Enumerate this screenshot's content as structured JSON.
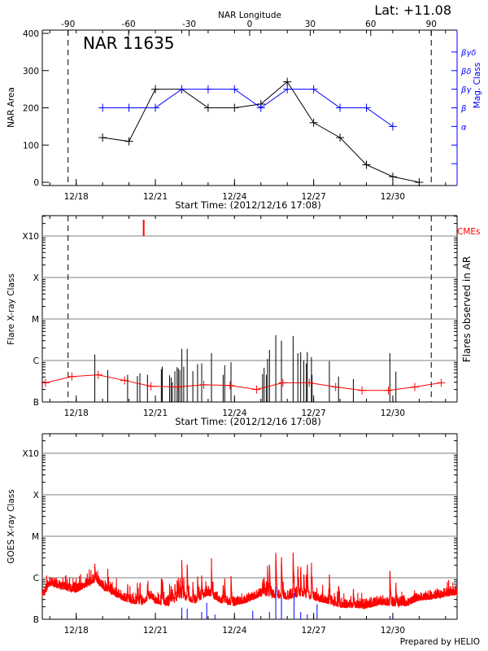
{
  "header": {
    "latitude_label": "Lat: +11.08",
    "longitude_axis_label": "NAR Longitude"
  },
  "colors": {
    "area": "#000000",
    "mag_class": "#0000ff",
    "flare_projection": "#ff0000",
    "cme": "#ff0000",
    "goes": "#ff0000",
    "goes_markers": "#0000ff",
    "grid": "#999999"
  },
  "footer": {
    "credit": "Prepared by HELIO"
  },
  "chart_data": [
    {
      "type": "line",
      "panel": "nar",
      "annotation": "NAR 11635",
      "xlabel": "Start Time: (2012/12/16 17:08)",
      "ylabel": "NAR Area",
      "y2label": "Mag. Class",
      "xlim": [
        "2012-12-16T17:08",
        "2013-01-01T10:30"
      ],
      "ylim": [
        -10,
        410
      ],
      "x_ticks": [
        "12/18",
        "12/21",
        "12/24",
        "12/27",
        "12/30"
      ],
      "y_ticks": [
        0,
        100,
        200,
        300,
        400
      ],
      "top_axis": {
        "label": "NAR Longitude",
        "ticks": [
          -90,
          -60,
          -30,
          0,
          30,
          60,
          90
        ],
        "limb_crossings": [
          {
            "lon": -90,
            "date": "2012-12-17T16:35"
          },
          {
            "lon": 90,
            "date": "2012-12-31T11:00"
          }
        ]
      },
      "mag_class_axis": [
        {
          "level": 50,
          "label": ""
        },
        {
          "level": 100,
          "label": ""
        },
        {
          "level": 150,
          "label": "α"
        },
        {
          "level": 200,
          "label": "β"
        },
        {
          "level": 250,
          "label": "βγ"
        },
        {
          "level": 300,
          "label": "βδ"
        },
        {
          "level": 350,
          "label": "βγδ"
        }
      ],
      "series": [
        {
          "key": "area",
          "dates": [
            "2012-12-19",
            "2012-12-20",
            "2012-12-21",
            "2012-12-22",
            "2012-12-23",
            "2012-12-24",
            "2012-12-25",
            "2012-12-26",
            "2012-12-27",
            "2012-12-28",
            "2012-12-29",
            "2012-12-30",
            "2012-12-31"
          ],
          "values": [
            120,
            110,
            250,
            250,
            200,
            200,
            210,
            270,
            160,
            120,
            47,
            15,
            0
          ]
        },
        {
          "key": "mag_class",
          "dates": [
            "2012-12-19",
            "2012-12-20",
            "2012-12-21",
            "2012-12-22",
            "2012-12-23",
            "2012-12-24",
            "2012-12-25",
            "2012-12-26",
            "2012-12-27",
            "2012-12-28",
            "2012-12-29",
            "2012-12-30"
          ],
          "values": [
            "β",
            "β",
            "β",
            "βγ",
            "βγ",
            "βγ",
            "β",
            "βγ",
            "βγ",
            "β",
            "β",
            "α"
          ]
        }
      ]
    },
    {
      "type": "bar",
      "panel": "flares",
      "xlabel": "Start Time: (2012/12/16 17:08)",
      "ylabel": "Flare X-ray Class",
      "y2label": "Flares observed in AR",
      "cme_label": "CMEs",
      "y_scale": "log",
      "y_ticks": [
        "B",
        "C",
        "M",
        "X",
        "X10"
      ],
      "grid": true,
      "x_ticks": [
        "12/18",
        "12/21",
        "12/24",
        "12/27",
        "12/30"
      ],
      "cmes": [
        "2012-12-20T13:22"
      ],
      "flares": [
        [
          "2012-12-18T16:55",
          "C1.4"
        ],
        [
          "2012-12-19T04:41",
          "B5.9"
        ],
        [
          "2012-12-19T22:45",
          "B4.5"
        ],
        [
          "2012-12-20T07:38",
          "B4.2"
        ],
        [
          "2012-12-20T09:56",
          "B4.9"
        ],
        [
          "2012-12-20T16:49",
          "B4.5"
        ],
        [
          "2012-12-21T05:26",
          "B6.2"
        ],
        [
          "2012-12-21T06:17",
          "B7.1"
        ],
        [
          "2012-12-21T12:54",
          "B4.4"
        ],
        [
          "2012-12-21T14:20",
          "B3.9"
        ],
        [
          "2012-12-21T15:28",
          "B3.0"
        ],
        [
          "2012-12-21T17:46",
          "B5.5"
        ],
        [
          "2012-12-21T19:46",
          "B6.9"
        ],
        [
          "2012-12-21T20:55",
          "B6.4"
        ],
        [
          "2012-12-21T22:21",
          "B5.9"
        ],
        [
          "2012-12-22T00:05",
          "C1.9"
        ],
        [
          "2012-12-22T01:48",
          "B7.1"
        ],
        [
          "2012-12-22T04:57",
          "C1.9"
        ],
        [
          "2012-12-22T10:07",
          "B5.5"
        ],
        [
          "2012-12-22T14:25",
          "B8.2"
        ],
        [
          "2012-12-22T18:09",
          "B8.5"
        ],
        [
          "2012-12-23T03:02",
          "C1.5"
        ],
        [
          "2012-12-23T13:39",
          "B4.5"
        ],
        [
          "2012-12-23T15:05",
          "B7.7"
        ],
        [
          "2012-12-23T20:49",
          "B9.1"
        ],
        [
          "2012-12-25T01:30",
          "B4.7"
        ],
        [
          "2012-12-25T02:56",
          "B6.7"
        ],
        [
          "2012-12-25T04:57",
          "B4.5"
        ],
        [
          "2012-12-25T06:05",
          "C1.1"
        ],
        [
          "2012-12-25T07:49",
          "C1.8"
        ],
        [
          "2012-12-25T13:33",
          "C4.1"
        ],
        [
          "2012-12-25T18:42",
          "C3.0"
        ],
        [
          "2012-12-26T05:19",
          "C3.9"
        ],
        [
          "2012-12-26T09:37",
          "C1.5"
        ],
        [
          "2012-12-26T12:12",
          "C1.6"
        ],
        [
          "2012-12-26T15:04",
          "C1.0"
        ],
        [
          "2012-12-26T17:22",
          "B8.5"
        ],
        [
          "2012-12-26T18:13",
          "C1.6"
        ],
        [
          "2012-12-26T22:00",
          "C1.2"
        ],
        [
          "2012-12-26T22:31",
          "B4.5"
        ],
        [
          "2012-12-27T14:18",
          "B9.7"
        ],
        [
          "2012-12-27T22:37",
          "B4.1"
        ],
        [
          "2012-12-28T12:06",
          "B3.6"
        ],
        [
          "2012-12-29T21:22",
          "C1.5"
        ],
        [
          "2012-12-30T02:49",
          "B5.4"
        ]
      ],
      "projection": {
        "dates": [
          "2012-12-16T20:00",
          "2012-12-17T20:00",
          "2012-12-18T20:00",
          "2012-12-19T20:00",
          "2012-12-20T20:00",
          "2012-12-21T20:00",
          "2012-12-22T20:00",
          "2012-12-23T20:00",
          "2012-12-24T20:00",
          "2012-12-25T20:00",
          "2012-12-26T20:00",
          "2012-12-27T20:00",
          "2012-12-28T20:00",
          "2012-12-29T20:00",
          "2012-12-30T20:00",
          "2012-12-31T20:00"
        ],
        "values": [
          "B2.9",
          "B4.1",
          "B4.5",
          "B3.3",
          "B2.4",
          "B2.3",
          "B2.6",
          "B2.5",
          "B2.0",
          "B2.9",
          "B2.9",
          "B2.3",
          "B1.9",
          "B1.9",
          "B2.3",
          "B2.9"
        ]
      }
    },
    {
      "type": "line",
      "panel": "goes",
      "ylabel": "GOES X-ray Class",
      "y_scale": "log",
      "y_ticks": [
        "B",
        "C",
        "M",
        "X",
        "X10"
      ],
      "grid": true,
      "x_ticks": [
        "12/18",
        "12/21",
        "12/24",
        "12/27",
        "12/30"
      ],
      "background": {
        "dates": [
          "2012-12-16T18:00",
          "2012-12-17T00:00",
          "2012-12-17T12:00",
          "2012-12-18T00:00",
          "2012-12-18T18:00",
          "2012-12-19T00:00",
          "2012-12-19T12:00",
          "2012-12-20T00:00",
          "2012-12-20T12:00",
          "2012-12-20T20:00",
          "2012-12-21T00:00",
          "2012-12-21T12:00",
          "2012-12-22T00:00",
          "2012-12-22T12:00",
          "2012-12-23T00:00",
          "2012-12-23T12:00",
          "2012-12-24T00:00",
          "2012-12-24T12:00",
          "2012-12-25T00:00",
          "2012-12-25T12:00",
          "2012-12-26T00:00",
          "2012-12-26T12:00",
          "2012-12-27T00:00",
          "2012-12-27T12:00",
          "2012-12-28T00:00",
          "2012-12-28T12:00",
          "2012-12-29T00:00",
          "2012-12-29T12:00",
          "2012-12-30T00:00",
          "2012-12-30T12:00",
          "2012-12-31T00:00",
          "2012-12-31T12:00",
          "2013-01-01T00:00",
          "2013-01-01T10:30"
        ],
        "values": [
          "B4.1",
          "B7.5",
          "B6.0",
          "B5.1",
          "B9.4",
          "B6.0",
          "B4.1",
          "B2.8",
          "B2.6",
          "B3.8",
          "B2.8",
          "B2.4",
          "B3.5",
          "B2.8",
          "B4.4",
          "B2.8",
          "B2.4",
          "B3.0",
          "B4.1",
          "B3.8",
          "B3.5",
          "B4.1",
          "B3.3",
          "B2.8",
          "B2.2",
          "B2.2",
          "B2.1",
          "B2.6",
          "B2.4",
          "B2.4",
          "B3.3",
          "B3.5",
          "B4.1",
          "B4.5"
        ]
      },
      "ar_flare_markers": [
        [
          "2012-12-22T00:05",
          "B1.9"
        ],
        [
          "2012-12-22T04:57",
          "B1.8"
        ],
        [
          "2012-12-22T18:09",
          "B1.5"
        ],
        [
          "2012-12-22T22:44",
          "B2.5"
        ],
        [
          "2012-12-23T06:12",
          "B1.3"
        ],
        [
          "2012-12-24T16:36",
          "B1.6"
        ],
        [
          "2012-12-25T07:49",
          "B1.5"
        ],
        [
          "2012-12-25T13:33",
          "B6.0"
        ],
        [
          "2012-12-25T18:42",
          "B3.3"
        ],
        [
          "2012-12-26T06:11",
          "B4.3"
        ],
        [
          "2012-12-26T12:12",
          "B1.5"
        ],
        [
          "2012-12-26T18:13",
          "B1.3"
        ],
        [
          "2012-12-27T03:07",
          "B2.3"
        ],
        [
          "2012-12-29T21:22",
          "B1.2"
        ]
      ]
    }
  ]
}
